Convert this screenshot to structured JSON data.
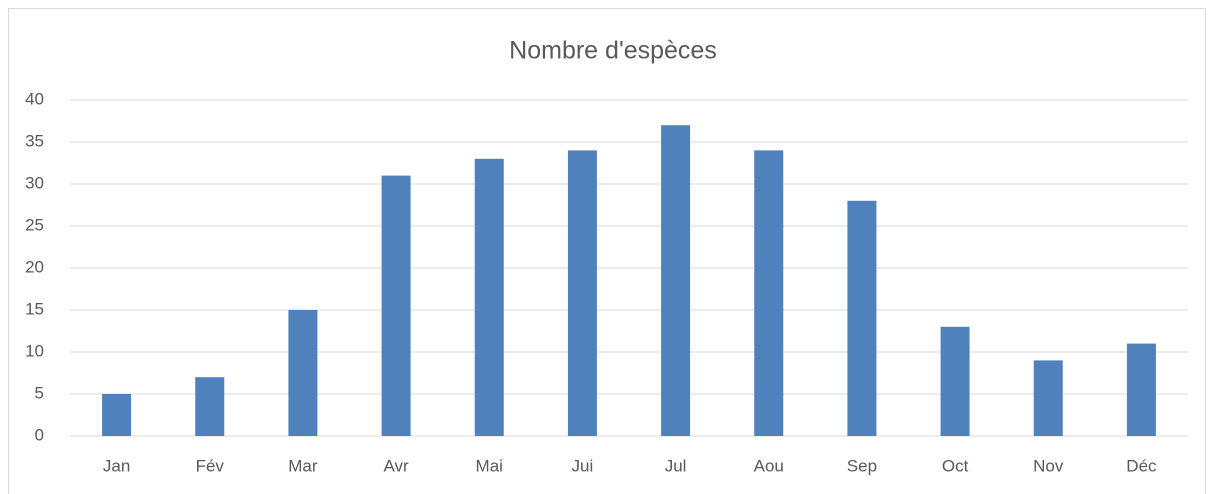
{
  "chart_data": {
    "type": "bar",
    "title": "Nombre d'espèces",
    "categories": [
      "Jan",
      "Fév",
      "Mar",
      "Avr",
      "Mai",
      "Jui",
      "Jul",
      "Aou",
      "Sep",
      "Oct",
      "Nov",
      "Déc"
    ],
    "values": [
      5,
      7,
      15,
      31,
      33,
      34,
      37,
      34,
      28,
      13,
      9,
      11
    ],
    "color": "#4f81bd",
    "ylim": [
      0,
      40
    ],
    "yticks": [
      0,
      5,
      10,
      15,
      20,
      25,
      30,
      35,
      40
    ],
    "grid": true
  }
}
